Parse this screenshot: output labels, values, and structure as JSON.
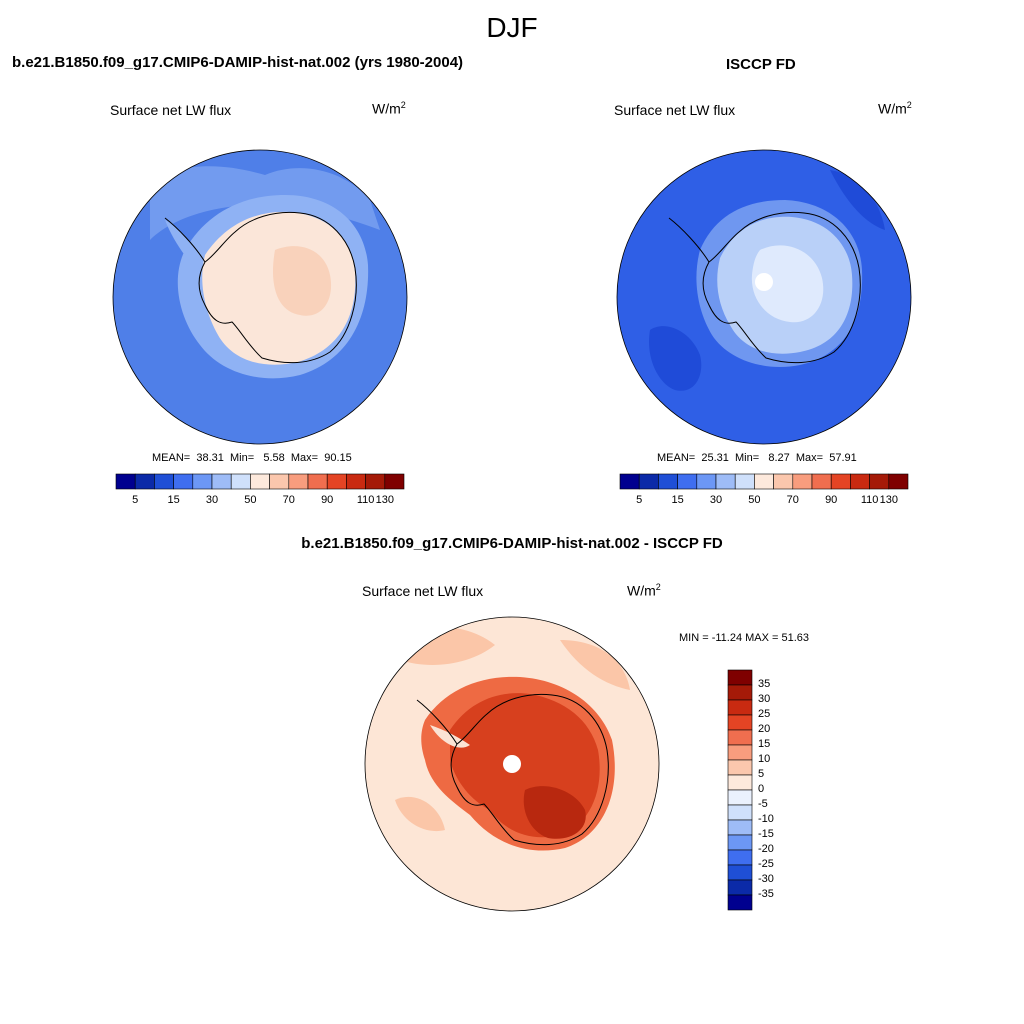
{
  "season": "DJF",
  "panels": [
    {
      "title": "b.e21.B1850.f09_g17.CMIP6-DAMIP-hist-nat.002 (yrs 1980-2004)",
      "variable": "Surface net LW flux",
      "units_base": "W/m",
      "units_exp": "2",
      "stats": {
        "mean": "38.31",
        "min": "5.58",
        "max": "90.15"
      },
      "stats_labels": {
        "mean": "MEAN=",
        "min": "Min=",
        "max": "Max="
      }
    },
    {
      "title": "ISCCP FD",
      "variable": "Surface net LW flux",
      "units_base": "W/m",
      "units_exp": "2",
      "stats": {
        "mean": "25.31",
        "min": "8.27",
        "max": "57.91"
      },
      "stats_labels": {
        "mean": "MEAN=",
        "min": "Min=",
        "max": "Max="
      }
    },
    {
      "title": "b.e21.B1850.f09_g17.CMIP6-DAMIP-hist-nat.002 - ISCCP FD",
      "variable": "Surface net LW flux",
      "units_base": "W/m",
      "units_exp": "2",
      "stats_text": "MIN = -11.24 MAX =  51.63"
    }
  ],
  "colorbar_abs": {
    "colors": [
      "#00008f",
      "#0b2aa8",
      "#1f4fd6",
      "#3f6ef0",
      "#6c97f5",
      "#9ebcf7",
      "#cfe0fb",
      "#fde9dc",
      "#fbc7ad",
      "#f89d7e",
      "#f06e4f",
      "#e44424",
      "#c92a11",
      "#a51a08",
      "#7f0000"
    ],
    "ticks": [
      "5",
      "15",
      "30",
      "50",
      "70",
      "90",
      "110",
      "130"
    ]
  },
  "colorbar_diff": {
    "colors": [
      "#7f0000",
      "#a51a08",
      "#c92a11",
      "#e44424",
      "#f06e4f",
      "#f89d7e",
      "#fbc7ad",
      "#fde9dc",
      "#eaf1fd",
      "#cfe0fb",
      "#9ebcf7",
      "#6c97f5",
      "#3f6ef0",
      "#1f4fd6",
      "#0b2aa8",
      "#00008f"
    ],
    "ticks": [
      "35",
      "30",
      "25",
      "20",
      "15",
      "10",
      "5",
      "0",
      "-5",
      "-10",
      "-15",
      "-20",
      "-25",
      "-30",
      "-35"
    ]
  },
  "map_colors": {
    "ocean_model": "#4f7fe8",
    "ocean_model_outer": "#4a79e4",
    "coast_band_model": "#8fb2f4",
    "ice_model": "#fbe6d9",
    "ice_model_inner": "#f8c9ae",
    "ocean_obs": "#2f5fe6",
    "ocean_obs_dark": "#1f4bd8",
    "coast_band_obs": "#6f97f0",
    "ice_obs": "#b9d0f8",
    "ice_obs_inner": "#dfeafd",
    "diff_ocean": "#fde6d6",
    "diff_ocean_patch": "#fbc6a8",
    "diff_land": "#ee6a43",
    "diff_land_dark": "#d7401e",
    "diff_land_darker": "#b8280f",
    "coastline": "#000000"
  }
}
